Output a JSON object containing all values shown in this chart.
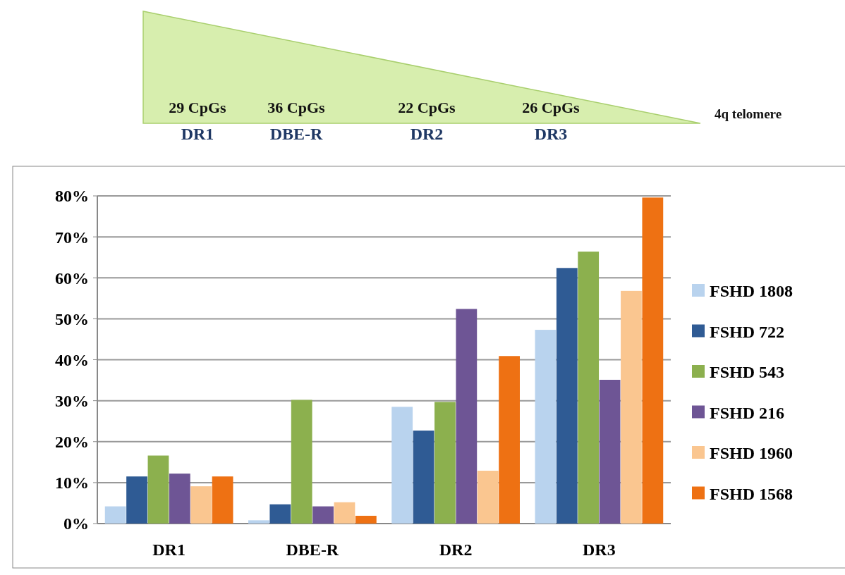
{
  "chart_data": {
    "type": "bar",
    "categories": [
      "DR1",
      "DBE-R",
      "DR2",
      "DR3"
    ],
    "series": [
      {
        "name": "FSHD 1808",
        "color": "#b9d3ee",
        "values": [
          4.2,
          0.8,
          28.5,
          47.3
        ]
      },
      {
        "name": "FSHD 722",
        "color": "#2f5b94",
        "values": [
          11.5,
          4.7,
          22.7,
          62.4
        ]
      },
      {
        "name": "FSHD 543",
        "color": "#8cb04e",
        "values": [
          16.6,
          30.2,
          29.7,
          66.4
        ]
      },
      {
        "name": "FSHD 216",
        "color": "#6e5595",
        "values": [
          12.2,
          4.2,
          52.4,
          35.1
        ]
      },
      {
        "name": "FSHD 1960",
        "color": "#fac690",
        "values": [
          9.1,
          5.2,
          12.9,
          56.8
        ]
      },
      {
        "name": "FSHD 1568",
        "color": "#ee7113",
        "values": [
          11.5,
          1.9,
          40.9,
          79.6
        ]
      }
    ],
    "ylim": [
      0,
      80
    ],
    "yticks": [
      {
        "value": 0,
        "label": "0%"
      },
      {
        "value": 10,
        "label": "10%"
      },
      {
        "value": 20,
        "label": "20%"
      },
      {
        "value": 30,
        "label": "30%"
      },
      {
        "value": 40,
        "label": "40%"
      },
      {
        "value": 50,
        "label": "50%"
      },
      {
        "value": 60,
        "label": "60%"
      },
      {
        "value": 70,
        "label": "70%"
      },
      {
        "value": 80,
        "label": "80%"
      }
    ],
    "grid": "y",
    "legend": "right",
    "annotations": [
      "29 CpGs",
      "36 CpGs",
      "22 CpGs",
      "26 CpGs",
      "DR1",
      "DBE-R",
      "DR2",
      "DR3",
      "4q telomere"
    ]
  }
}
